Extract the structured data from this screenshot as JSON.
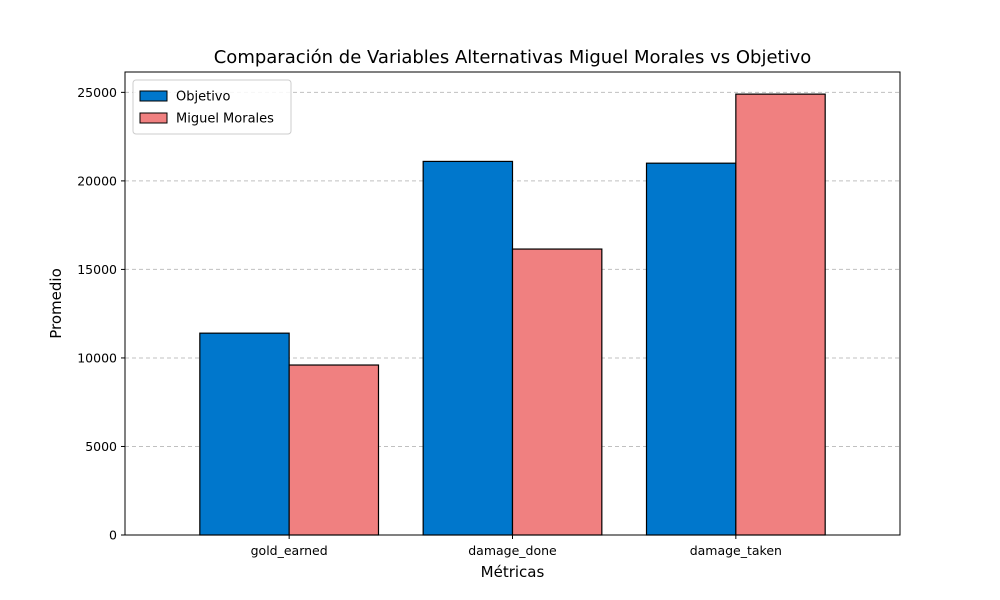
{
  "chart_data": {
    "type": "bar",
    "title": "Comparación de Variables Alternativas Miguel Morales vs Objetivo",
    "xlabel": "Métricas",
    "ylabel": "Promedio",
    "categories": [
      "gold_earned",
      "damage_done",
      "damage_taken"
    ],
    "series": [
      {
        "name": "Objetivo",
        "values": [
          11400,
          21100,
          21000
        ],
        "color": "#0077cc"
      },
      {
        "name": "Miguel Morales",
        "values": [
          9600,
          16150,
          24900
        ],
        "color": "#f08080"
      }
    ],
    "ylim": [
      0,
      26150
    ],
    "yticks": [
      0,
      5000,
      10000,
      15000,
      20000,
      25000
    ],
    "ytick_labels": [
      "0",
      "5000",
      "10000",
      "15000",
      "20000",
      "25000"
    ],
    "grid": "y-dashed",
    "legend_position": "top-left",
    "bar_edge_color": "#000000",
    "grid_color": "#c0c0c0"
  }
}
